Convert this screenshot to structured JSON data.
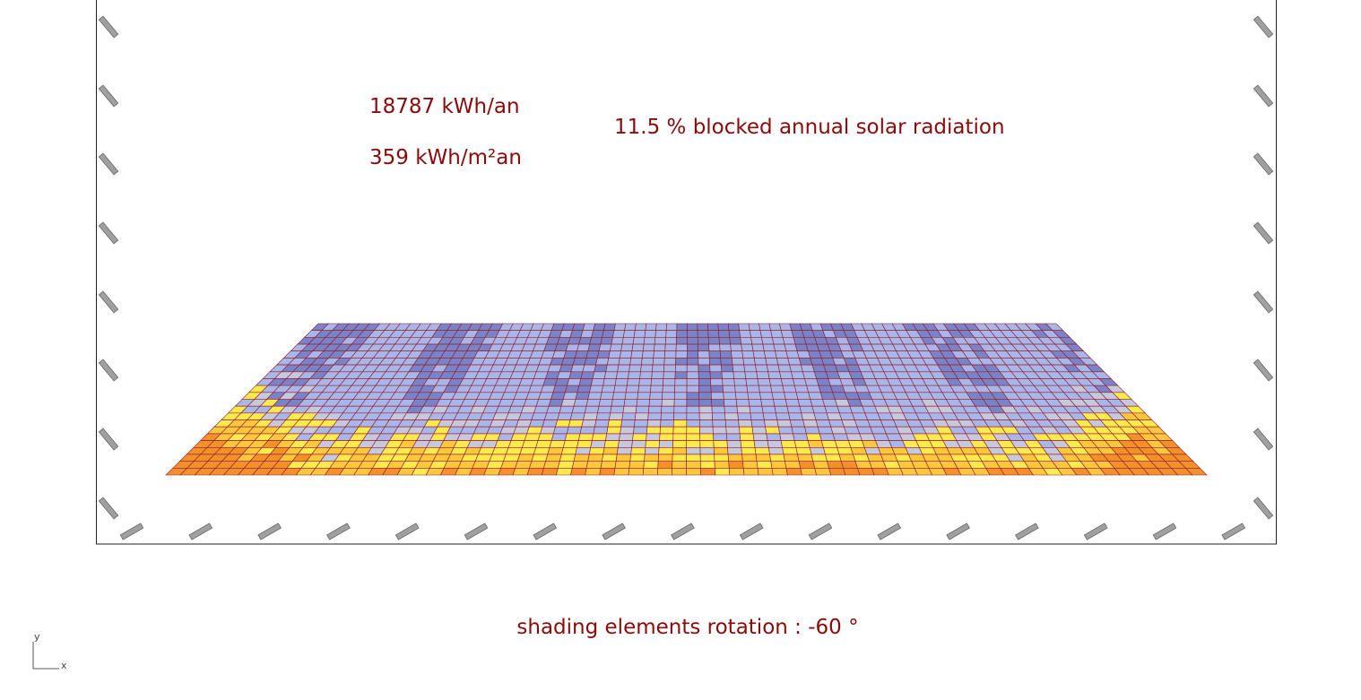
{
  "viewport": {
    "total_energy": "18787 kWh/an",
    "specific_energy": "359 kWh/m²an",
    "blocked_radiation": "11.5 % blocked annual solar radiation",
    "caption": "shading elements rotation : -60 °",
    "axis_y": "y",
    "axis_x": "x"
  }
}
